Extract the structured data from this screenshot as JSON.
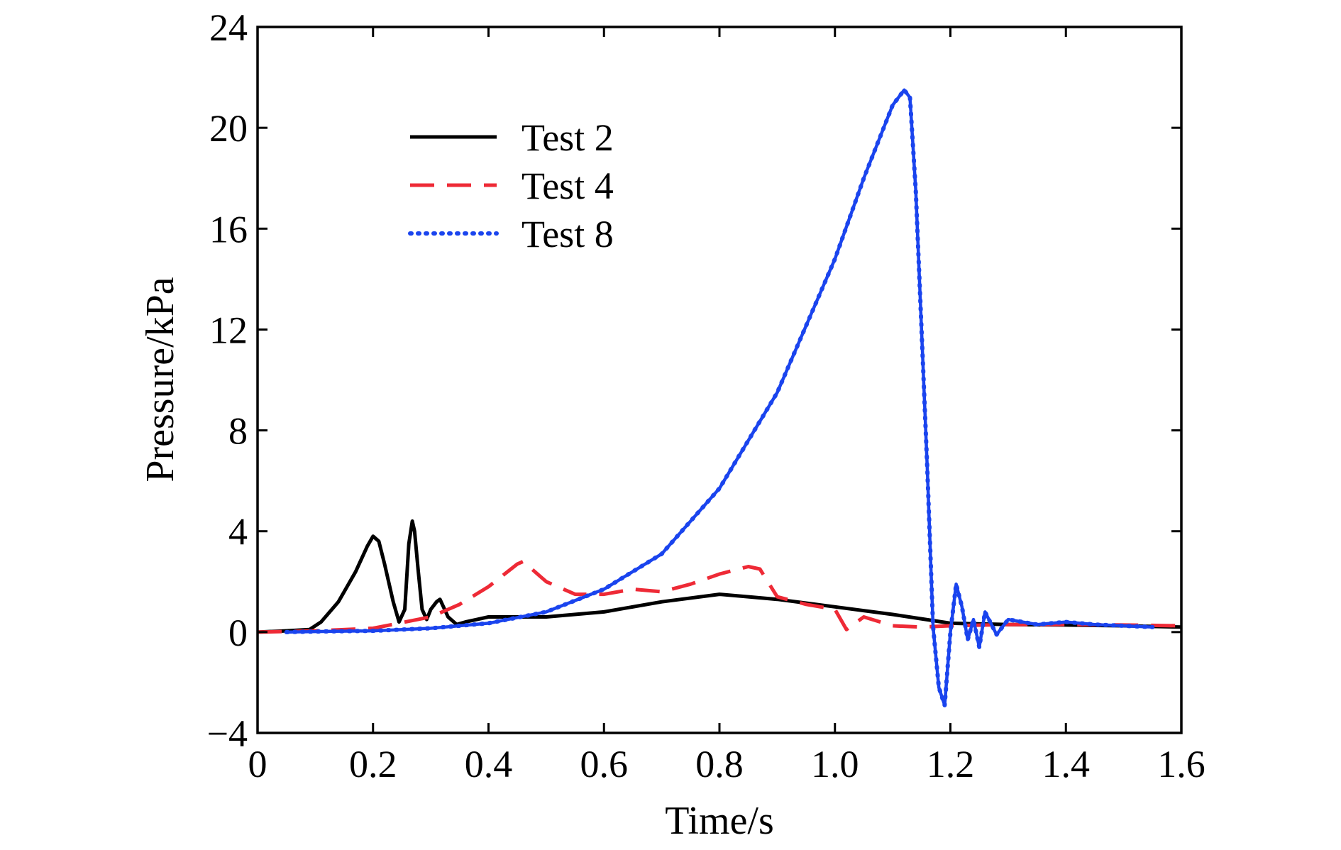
{
  "chart_data": {
    "type": "line",
    "title": "",
    "xlabel": "Time/s",
    "ylabel": "Pressure/kPa",
    "xlim": [
      0,
      1.6
    ],
    "ylim": [
      -4,
      24
    ],
    "xticks": [
      0,
      0.2,
      0.4,
      0.6,
      0.8,
      1.0,
      1.2,
      1.4,
      1.6
    ],
    "xtick_labels": [
      "0",
      "0.2",
      "0.4",
      "0.6",
      "0.8",
      "1.0",
      "1.2",
      "1.4",
      "1.6"
    ],
    "yticks": [
      -4,
      0,
      4,
      8,
      12,
      16,
      20,
      24
    ],
    "ytick_labels": [
      "−4",
      "0",
      "4",
      "8",
      "12",
      "16",
      "20",
      "24"
    ],
    "grid": false,
    "legend_position": "upper-left",
    "series": [
      {
        "name": "Test 2",
        "color": "#000000",
        "style": "solid",
        "x": [
          0.0,
          0.05,
          0.09,
          0.11,
          0.14,
          0.17,
          0.19,
          0.2,
          0.21,
          0.22,
          0.235,
          0.245,
          0.255,
          0.262,
          0.268,
          0.272,
          0.278,
          0.285,
          0.293,
          0.3,
          0.31,
          0.316,
          0.322,
          0.33,
          0.345,
          0.36,
          0.38,
          0.4,
          0.45,
          0.5,
          0.6,
          0.7,
          0.8,
          0.85,
          0.9,
          1.0,
          1.1,
          1.2,
          1.3,
          1.4,
          1.5,
          1.6
        ],
        "y": [
          0.0,
          0.05,
          0.1,
          0.4,
          1.2,
          2.4,
          3.4,
          3.8,
          3.6,
          2.7,
          1.2,
          0.4,
          0.9,
          3.5,
          4.4,
          4.0,
          2.5,
          0.9,
          0.5,
          0.9,
          1.2,
          1.3,
          1.0,
          0.6,
          0.3,
          0.4,
          0.5,
          0.6,
          0.6,
          0.6,
          0.8,
          1.2,
          1.5,
          1.4,
          1.3,
          1.0,
          0.7,
          0.35,
          0.3,
          0.28,
          0.25,
          0.2
        ]
      },
      {
        "name": "Test 4",
        "color": "#ee2a36",
        "style": "dashed",
        "x": [
          0.0,
          0.1,
          0.2,
          0.3,
          0.35,
          0.4,
          0.45,
          0.46,
          0.5,
          0.55,
          0.6,
          0.65,
          0.7,
          0.75,
          0.8,
          0.85,
          0.87,
          0.9,
          0.95,
          1.0,
          1.02,
          1.05,
          1.1,
          1.15,
          1.2,
          1.3,
          1.4,
          1.5,
          1.6
        ],
        "y": [
          0.0,
          0.05,
          0.15,
          0.6,
          1.1,
          1.8,
          2.7,
          2.8,
          2.0,
          1.5,
          1.5,
          1.7,
          1.6,
          1.9,
          2.3,
          2.6,
          2.5,
          1.4,
          1.1,
          0.9,
          0.1,
          0.6,
          0.25,
          0.2,
          0.25,
          0.3,
          0.3,
          0.28,
          0.25
        ]
      },
      {
        "name": "Test 8",
        "color": "#1a44ee",
        "style": "dotted",
        "x": [
          0.05,
          0.1,
          0.2,
          0.3,
          0.4,
          0.5,
          0.6,
          0.7,
          0.8,
          0.9,
          1.0,
          1.05,
          1.1,
          1.12,
          1.13,
          1.14,
          1.16,
          1.17,
          1.18,
          1.19,
          1.2,
          1.21,
          1.22,
          1.23,
          1.24,
          1.25,
          1.26,
          1.28,
          1.3,
          1.35,
          1.4,
          1.45,
          1.5,
          1.55
        ],
        "y": [
          0.0,
          0.02,
          0.05,
          0.15,
          0.35,
          0.8,
          1.7,
          3.1,
          5.7,
          9.5,
          14.8,
          18.0,
          20.9,
          21.5,
          21.2,
          17.5,
          6.5,
          0.2,
          -2.2,
          -2.9,
          0.0,
          1.9,
          1.0,
          -0.3,
          0.5,
          -0.6,
          0.8,
          -0.1,
          0.5,
          0.3,
          0.4,
          0.3,
          0.25,
          0.2
        ]
      }
    ]
  }
}
